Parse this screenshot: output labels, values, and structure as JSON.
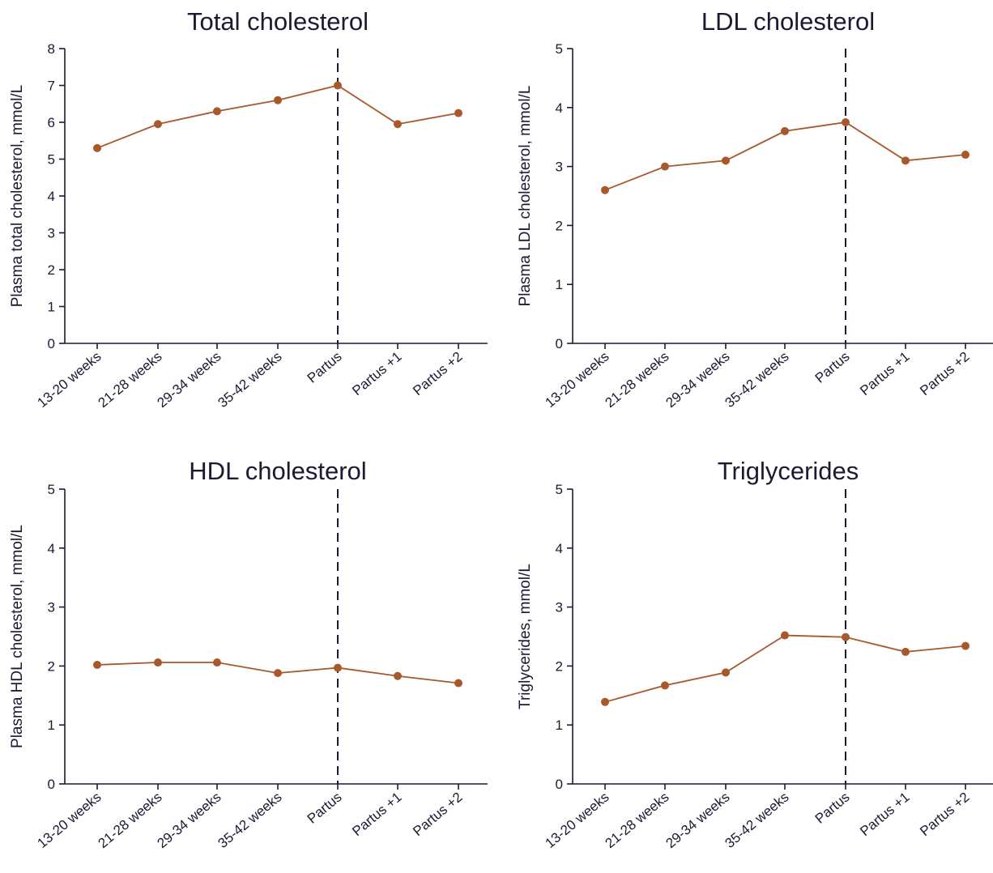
{
  "colors": {
    "series": "#a8582a",
    "axis": "#1a1a33"
  },
  "chart_data": [
    {
      "type": "line",
      "title": "Total cholesterol",
      "ylabel": "Plasma total cholesterol, mmol/L",
      "xlabel": "",
      "categories": [
        "13-20 weeks",
        "21-28 weeks",
        "29-34 weeks",
        "35-42 weeks",
        "Partus",
        "Partus +1",
        "Partus +2"
      ],
      "values": [
        5.3,
        5.95,
        6.3,
        6.6,
        7.0,
        5.95,
        6.25
      ],
      "ylim": [
        0,
        8
      ],
      "yticks": [
        0,
        1,
        2,
        3,
        4,
        5,
        6,
        7,
        8
      ],
      "reference_line_at": "Partus",
      "grid": false,
      "legend": "none"
    },
    {
      "type": "line",
      "title": "LDL cholesterol",
      "ylabel": "Plasma LDL cholesterol, mmol/L",
      "xlabel": "",
      "categories": [
        "13-20 weeks",
        "21-28 weeks",
        "29-34 weeks",
        "35-42 weeks",
        "Partus",
        "Partus +1",
        "Partus +2"
      ],
      "values": [
        2.6,
        3.0,
        3.1,
        3.6,
        3.75,
        3.1,
        3.2
      ],
      "ylim": [
        0,
        5
      ],
      "yticks": [
        0,
        1,
        2,
        3,
        4,
        5
      ],
      "reference_line_at": "Partus",
      "grid": false,
      "legend": "none"
    },
    {
      "type": "line",
      "title": "HDL cholesterol",
      "ylabel": "Plasma HDL cholesterol, mmol/L",
      "xlabel": "",
      "categories": [
        "13-20 weeks",
        "21-28 weeks",
        "29-34 weeks",
        "35-42 weeks",
        "Partus",
        "Partus +1",
        "Partus +2"
      ],
      "values": [
        2.02,
        2.06,
        2.06,
        1.88,
        1.97,
        1.83,
        1.71
      ],
      "ylim": [
        0,
        5
      ],
      "yticks": [
        0,
        1,
        2,
        3,
        4,
        5
      ],
      "reference_line_at": "Partus",
      "grid": false,
      "legend": "none"
    },
    {
      "type": "line",
      "title": "Triglycerides",
      "ylabel": "Triglycerides, mmol/L",
      "xlabel": "",
      "categories": [
        "13-20 weeks",
        "21-28 weeks",
        "29-34 weeks",
        "35-42 weeks",
        "Partus",
        "Partus +1",
        "Partus +2"
      ],
      "values": [
        1.39,
        1.67,
        1.89,
        2.52,
        2.49,
        2.24,
        2.34
      ],
      "ylim": [
        0,
        5
      ],
      "yticks": [
        0,
        1,
        2,
        3,
        4,
        5
      ],
      "reference_line_at": "Partus",
      "grid": false,
      "legend": "none"
    }
  ]
}
